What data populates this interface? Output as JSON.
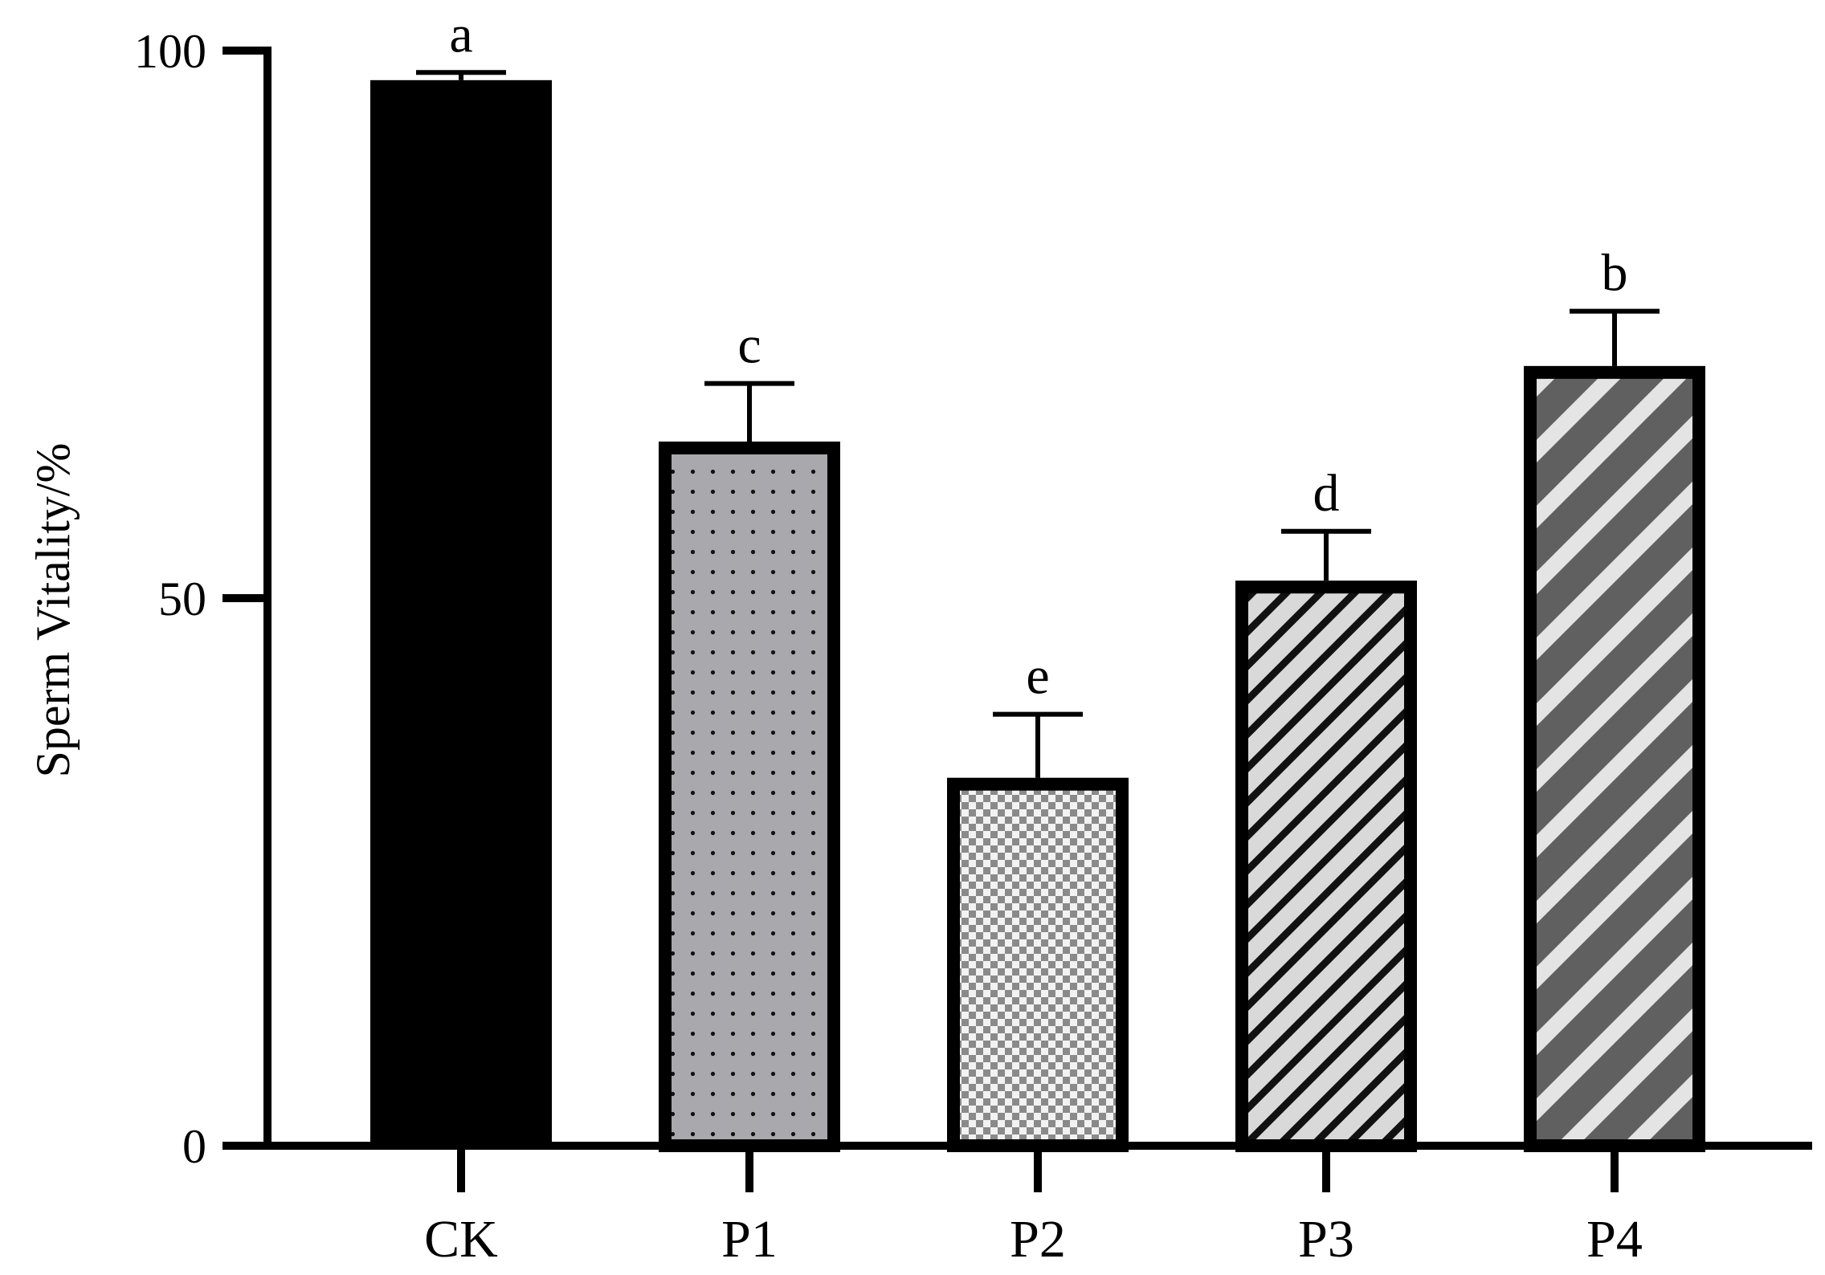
{
  "chart_data": {
    "type": "bar",
    "title": "",
    "xlabel": "",
    "ylabel": "Sperm Vitality/%",
    "ylim": [
      0,
      100
    ],
    "yticks": [
      0,
      50,
      100
    ],
    "grid": false,
    "categories": [
      "CK",
      "P1",
      "P2",
      "P3",
      "P4"
    ],
    "values": [
      97.3,
      64.3,
      33.6,
      51.6,
      71.2
    ],
    "error": [
      0.7,
      5.3,
      5.8,
      4.5,
      5.0
    ],
    "significance": [
      "a",
      "c",
      "e",
      "d",
      "b"
    ],
    "fills": [
      "solid-black",
      "dotted-gray",
      "checker-gray",
      "stripe-light",
      "stripe-dark"
    ],
    "colors": {
      "axis": "#000000",
      "gray": "#a9a9ad",
      "stripe_light": "#d9d9d9",
      "stripe_dark": "#606060"
    }
  }
}
